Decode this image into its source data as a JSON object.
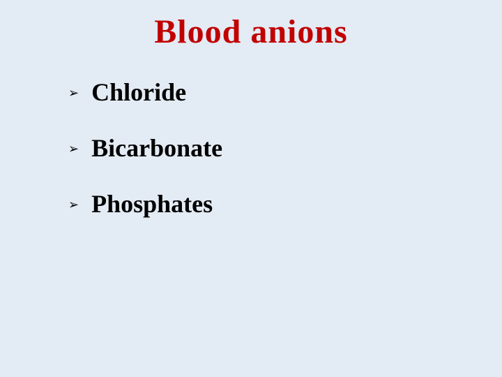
{
  "slide": {
    "title": "Blood anions",
    "title_color": "#c10000",
    "title_fontsize": 48,
    "title_fontweight": "bold",
    "background_color": "#e3ebf4",
    "bullet_marker": "➢",
    "bullet_color": "#000000",
    "bullet_text_color": "#000000",
    "bullet_fontsize": 36,
    "bullet_fontweight": "bold",
    "items": [
      {
        "label": "Chloride"
      },
      {
        "label": "Bicarbonate"
      },
      {
        "label": "Phosphates"
      }
    ]
  }
}
